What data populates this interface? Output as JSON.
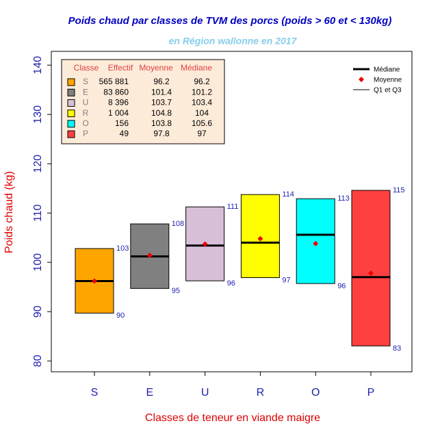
{
  "chart_data": {
    "type": "box",
    "title": "Poids chaud par classes de TVM des porcs (poids > 60 et < 130kg)",
    "subtitle": "en Région wallonne en 2017",
    "x_label": "Classes de teneur en viande maigre",
    "y_label": "Poids chaud (kg)",
    "categories": [
      "S",
      "E",
      "U",
      "R",
      "O",
      "P"
    ],
    "colors": [
      "#ffa500",
      "#808080",
      "#d8bfd8",
      "#ffff00",
      "#00ffff",
      "#ff4040"
    ],
    "series": [
      {
        "name": "Médiane",
        "color": "#000000",
        "values": [
          96.2,
          101.2,
          103.4,
          104,
          105.6,
          97
        ]
      },
      {
        "name": "Moyenne",
        "color": "#ee0000",
        "values": [
          96.2,
          101.4,
          103.7,
          104.8,
          103.8,
          97.8
        ]
      }
    ],
    "boxes": {
      "name": "Q1 et Q3",
      "q1": [
        89.7,
        94.7,
        96.25,
        96.9,
        95.7,
        83.05
      ],
      "q1_labels": [
        "90",
        "95",
        "96",
        "97",
        "96",
        "83"
      ],
      "q3": [
        102.8,
        107.8,
        111.25,
        113.75,
        112.9,
        114.6
      ],
      "q3_labels": [
        "103",
        "108",
        "111",
        "114",
        "113",
        "115"
      ]
    },
    "table": {
      "header": [
        "Classe",
        "Effectif",
        "Moyenne",
        "Médiane"
      ],
      "effectif": [
        "565 881",
        "83 860",
        "8 396",
        "1 004",
        "156",
        "49"
      ]
    },
    "ylim": [
      77.8,
      142.8
    ],
    "yticks": [
      80,
      90,
      100,
      110,
      120,
      130,
      140
    ]
  }
}
